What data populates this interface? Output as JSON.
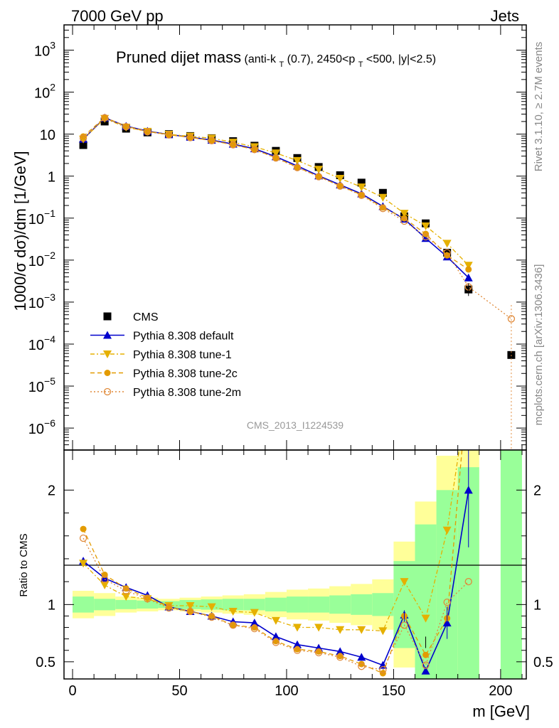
{
  "header": {
    "left": "7000 GeV pp",
    "right": "Jets"
  },
  "side_labels": {
    "rivet": "Rivet 3.1.10, ≥ 2.7M events",
    "site": "mcplots.cern.ch [arXiv:1306.3436]"
  },
  "chart_data": [
    {
      "type": "line",
      "panel": "main",
      "title_main": "Pruned dijet mass",
      "title_sub": "(anti-k",
      "title_sub_T": "T",
      "title_sub_mid": "(0.7), 2450<p",
      "title_sub_T2": "T",
      "title_sub_end": "<500, |y|<2.5)",
      "ylabel": "1000/σ dσ)/dm [1/GeV]",
      "yscale": "log",
      "ylim": [
        3e-07,
        4000
      ],
      "xlim": [
        -4,
        212
      ],
      "watermark": "CMS_2013_I1224539",
      "ytick_labels": [
        {
          "base": "10",
          "exp": "3"
        },
        {
          "base": "10",
          "exp": "2"
        },
        {
          "base": "10",
          "exp": ""
        },
        {
          "base": "1",
          "exp": ""
        },
        {
          "base": "10",
          "exp": "−1"
        },
        {
          "base": "10",
          "exp": "−2"
        },
        {
          "base": "10",
          "exp": "−3"
        },
        {
          "base": "10",
          "exp": "−4"
        },
        {
          "base": "10",
          "exp": "−5"
        },
        {
          "base": "10",
          "exp": "−6"
        }
      ],
      "legend": {
        "placement": "bottom-left",
        "entries": [
          "CMS",
          "Pythia 8.308 default",
          "Pythia 8.308 tune-1",
          "Pythia 8.308 tune-2c",
          "Pythia 8.308 tune-2m"
        ]
      },
      "x": [
        5,
        15,
        25,
        35,
        45,
        55,
        65,
        75,
        85,
        95,
        105,
        115,
        125,
        135,
        145,
        155,
        165,
        175,
        185,
        195,
        205
      ],
      "series": [
        {
          "name": "CMS",
          "marker": "square",
          "color": "#000000",
          "values": [
            5.5,
            20,
            13.5,
            11,
            10,
            9,
            8,
            6.8,
            5.3,
            4,
            2.7,
            1.65,
            1.05,
            0.7,
            0.4,
            0.11,
            0.075,
            0.015,
            0.002,
            null,
            5.5e-05
          ]
        },
        {
          "name": "Pythia 8.308 default",
          "marker": "triangle-up",
          "color": "#0000cc",
          "values": [
            7.6,
            24.5,
            15.5,
            11.8,
            9.8,
            8.5,
            7.2,
            5.8,
            4.5,
            2.9,
            1.75,
            1.02,
            0.62,
            0.38,
            0.19,
            0.095,
            0.033,
            0.012,
            0.0038,
            null,
            null
          ]
        },
        {
          "name": "Pythia 8.308 tune-1",
          "marker": "triangle-down",
          "color": "#e5b000",
          "values": [
            7.6,
            23.5,
            14.6,
            11.6,
            9.9,
            8.9,
            8.0,
            6.4,
            5.0,
            3.55,
            2.35,
            1.45,
            0.88,
            0.55,
            0.31,
            0.13,
            0.065,
            0.025,
            0.0075,
            null,
            null
          ]
        },
        {
          "name": "Pythia 8.308 tune-2c",
          "marker": "circle",
          "color": "#e39b00",
          "values": [
            8.8,
            25,
            15.4,
            11.6,
            9.7,
            8.4,
            7.0,
            5.6,
            4.3,
            2.75,
            1.63,
            0.98,
            0.59,
            0.36,
            0.18,
            0.099,
            0.042,
            0.013,
            0.006,
            null,
            null
          ]
        },
        {
          "name": "Pythia 8.308 tune-2m",
          "marker": "circle-open",
          "color": "#e08a3a",
          "values": [
            8.0,
            24.5,
            15.0,
            11.4,
            9.6,
            8.3,
            7.0,
            5.6,
            4.3,
            2.7,
            1.6,
            0.97,
            0.58,
            0.35,
            0.17,
            0.085,
            0.036,
            0.015,
            0.0023,
            null,
            0.0004
          ]
        }
      ]
    },
    {
      "type": "line",
      "panel": "ratio",
      "ylabel": "Ratio to CMS",
      "xlabel": "m [GeV]",
      "ylim": [
        0.35,
        2.35
      ],
      "xlim": [
        -4,
        212
      ],
      "xtick_labels": [
        "0",
        "50",
        "100",
        "150",
        "200"
      ],
      "ytick_labels": [
        "0.5",
        "1",
        "2"
      ],
      "x": [
        5,
        15,
        25,
        35,
        45,
        55,
        65,
        75,
        85,
        95,
        105,
        115,
        125,
        135,
        145,
        155,
        165,
        175,
        185
      ],
      "bands": {
        "green_half": [
          0.07,
          0.05,
          0.04,
          0.035,
          0.03,
          0.04,
          0.045,
          0.05,
          0.05,
          0.06,
          0.07,
          0.07,
          0.08,
          0.09,
          0.1,
          0.38,
          0.7,
          1.0,
          1.2
        ],
        "yellow_half": [
          0.12,
          0.1,
          0.07,
          0.06,
          0.05,
          0.06,
          0.07,
          0.08,
          0.09,
          0.11,
          0.13,
          0.14,
          0.16,
          0.18,
          0.22,
          0.55,
          0.9,
          1.3,
          1.6
        ],
        "far_green_range": [
          200,
          210
        ]
      },
      "series": [
        {
          "name": "Pythia 8.308 default",
          "color": "#0000cc",
          "values": [
            1.38,
            1.23,
            1.15,
            1.08,
            0.98,
            0.94,
            0.9,
            0.85,
            0.84,
            0.72,
            0.65,
            0.62,
            0.59,
            0.54,
            0.47,
            0.91,
            0.42,
            0.84,
            2.0
          ]
        },
        {
          "name": "Pythia 8.308 tune-1",
          "color": "#e5b000",
          "values": [
            1.36,
            1.17,
            1.07,
            1.05,
            0.99,
            0.99,
            0.98,
            0.94,
            0.93,
            0.86,
            0.8,
            0.8,
            0.78,
            0.78,
            0.77,
            1.2,
            0.88,
            1.65,
            2.9
          ]
        },
        {
          "name": "Pythia 8.308 tune-2c",
          "color": "#e39b00",
          "values": [
            1.66,
            1.26,
            1.14,
            1.06,
            0.98,
            0.94,
            0.9,
            0.82,
            0.8,
            0.68,
            0.61,
            0.59,
            0.55,
            0.48,
            0.4,
            0.9,
            0.56,
            0.88,
            3.0
          ]
        },
        {
          "name": "Pythia 8.308 tune-2m",
          "color": "#e08a3a",
          "values": [
            1.58,
            1.22,
            1.12,
            1.05,
            0.97,
            0.94,
            0.89,
            0.82,
            0.79,
            0.67,
            0.6,
            0.58,
            0.54,
            0.46,
            0.43,
            0.82,
            0.47,
            1.02,
            1.2
          ]
        }
      ]
    }
  ]
}
